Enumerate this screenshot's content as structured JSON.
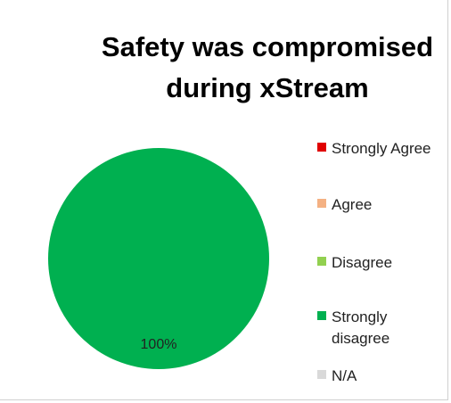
{
  "chart_data": {
    "type": "pie",
    "title": "Safety was compromised during xStream",
    "categories": [
      "Strongly Agree",
      "Agree",
      "Disagree",
      "Strongly disagree",
      "N/A"
    ],
    "values": [
      0,
      0,
      0,
      100,
      0
    ],
    "value_labels": [
      null,
      null,
      null,
      "100%",
      null
    ],
    "colors": [
      "#e00000",
      "#f4b183",
      "#92d050",
      "#00b050",
      "#d9d9d9"
    ],
    "legend": "right"
  }
}
